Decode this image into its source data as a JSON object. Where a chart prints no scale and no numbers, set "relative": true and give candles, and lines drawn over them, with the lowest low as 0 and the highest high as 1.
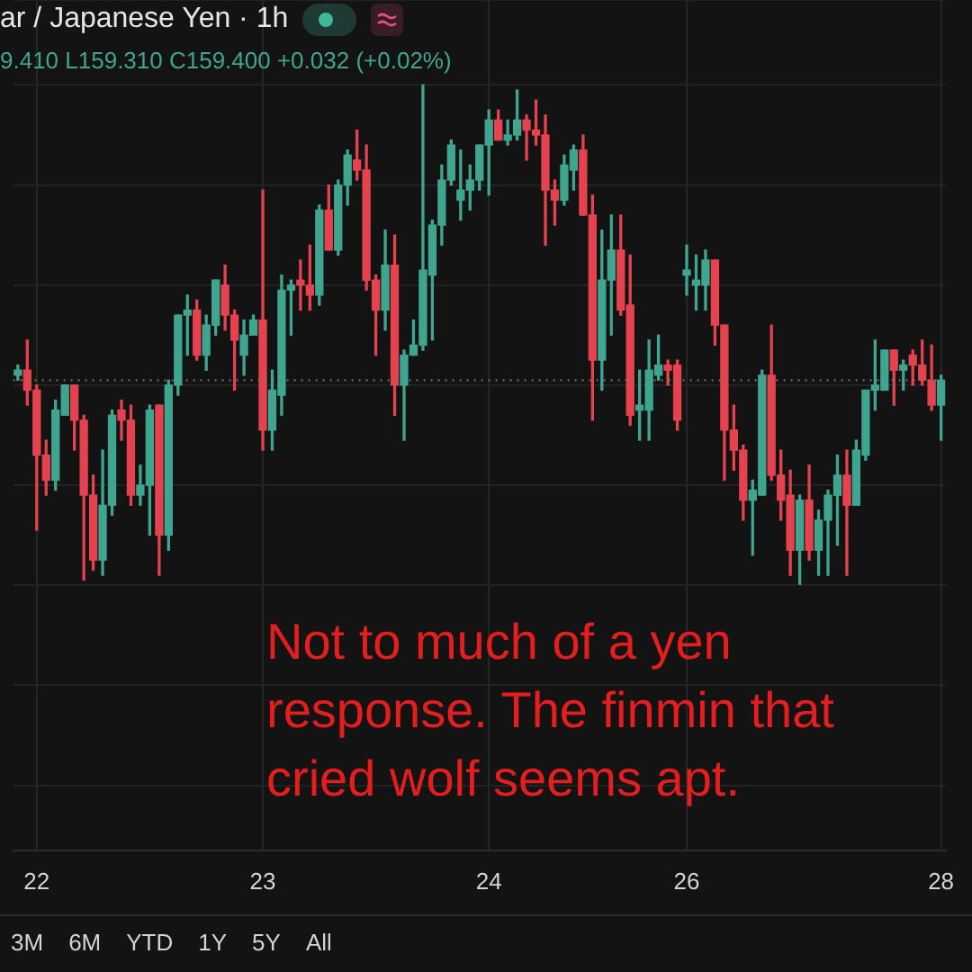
{
  "chart_data": {
    "type": "candlestick",
    "relative": true,
    "grid": true,
    "categories": [
      null,
      null,
      "22",
      null,
      null,
      null,
      null,
      null,
      null,
      null,
      null,
      null,
      null,
      null,
      null,
      null,
      null,
      null,
      null,
      null,
      null,
      null,
      null,
      null,
      null,
      null,
      "23",
      null,
      null,
      null,
      null,
      null,
      null,
      null,
      null,
      null,
      null,
      null,
      null,
      null,
      null,
      null,
      null,
      null,
      null,
      null,
      null,
      null,
      null,
      null,
      "24",
      null,
      null,
      null,
      null,
      null,
      null,
      null,
      null,
      null,
      null,
      null,
      null,
      null,
      null,
      null,
      null,
      null,
      null,
      null,
      null,
      "26",
      null,
      null,
      null,
      null,
      null,
      null,
      null,
      null,
      null,
      null,
      null,
      null,
      null,
      null,
      null,
      null,
      null,
      null,
      null,
      null,
      null,
      null,
      null,
      null,
      null,
      null,
      "28"
    ],
    "ohlc": [
      [
        0.42,
        0.44,
        0.41,
        0.43
      ],
      [
        0.43,
        0.49,
        0.36,
        0.39
      ],
      [
        0.39,
        0.4,
        0.11,
        0.26
      ],
      [
        0.26,
        0.29,
        0.18,
        0.21
      ],
      [
        0.21,
        0.37,
        0.19,
        0.35
      ],
      [
        0.34,
        0.4,
        0.34,
        0.4
      ],
      [
        0.4,
        0.4,
        0.27,
        0.33
      ],
      [
        0.33,
        0.34,
        0.01,
        0.18
      ],
      [
        0.18,
        0.22,
        0.03,
        0.05
      ],
      [
        0.05,
        0.27,
        0.02,
        0.16
      ],
      [
        0.16,
        0.35,
        0.14,
        0.34
      ],
      [
        0.35,
        0.37,
        0.29,
        0.33
      ],
      [
        0.33,
        0.36,
        0.16,
        0.18
      ],
      [
        0.18,
        0.24,
        0.16,
        0.2
      ],
      [
        0.2,
        0.36,
        0.1,
        0.35
      ],
      [
        0.36,
        0.36,
        0.02,
        0.1
      ],
      [
        0.1,
        0.41,
        0.07,
        0.4
      ],
      [
        0.4,
        0.54,
        0.38,
        0.54
      ],
      [
        0.54,
        0.58,
        0.46,
        0.55
      ],
      [
        0.55,
        0.57,
        0.45,
        0.46
      ],
      [
        0.46,
        0.54,
        0.43,
        0.52
      ],
      [
        0.52,
        0.61,
        0.5,
        0.61
      ],
      [
        0.6,
        0.64,
        0.51,
        0.54
      ],
      [
        0.54,
        0.55,
        0.39,
        0.49
      ],
      [
        0.46,
        0.53,
        0.42,
        0.5
      ],
      [
        0.5,
        0.54,
        0.5,
        0.53
      ],
      [
        0.53,
        0.79,
        0.27,
        0.31
      ],
      [
        0.31,
        0.43,
        0.27,
        0.39
      ],
      [
        0.38,
        0.62,
        0.34,
        0.59
      ],
      [
        0.59,
        0.61,
        0.5,
        0.6
      ],
      [
        0.61,
        0.65,
        0.55,
        0.6
      ],
      [
        0.6,
        0.68,
        0.55,
        0.58
      ],
      [
        0.58,
        0.76,
        0.56,
        0.75
      ],
      [
        0.75,
        0.8,
        0.67,
        0.67
      ],
      [
        0.67,
        0.81,
        0.66,
        0.8
      ],
      [
        0.8,
        0.87,
        0.76,
        0.86
      ],
      [
        0.85,
        0.91,
        0.81,
        0.83
      ],
      [
        0.83,
        0.88,
        0.59,
        0.61
      ],
      [
        0.61,
        0.62,
        0.46,
        0.55
      ],
      [
        0.55,
        0.71,
        0.51,
        0.64
      ],
      [
        0.64,
        0.7,
        0.34,
        0.4
      ],
      [
        0.4,
        0.47,
        0.29,
        0.46
      ],
      [
        0.46,
        0.53,
        0.46,
        0.48
      ],
      [
        0.48,
        1.0,
        0.47,
        0.63
      ],
      [
        0.62,
        0.73,
        0.49,
        0.72
      ],
      [
        0.72,
        0.84,
        0.68,
        0.81
      ],
      [
        0.81,
        0.89,
        0.8,
        0.88
      ],
      [
        0.77,
        0.87,
        0.73,
        0.79
      ],
      [
        0.79,
        0.84,
        0.75,
        0.81
      ],
      [
        0.81,
        0.88,
        0.79,
        0.88
      ],
      [
        0.88,
        0.95,
        0.78,
        0.93
      ],
      [
        0.93,
        0.95,
        0.89,
        0.89
      ],
      [
        0.89,
        0.93,
        0.88,
        0.9
      ],
      [
        0.9,
        0.99,
        0.89,
        0.93
      ],
      [
        0.93,
        0.94,
        0.85,
        0.91
      ],
      [
        0.91,
        0.97,
        0.88,
        0.9
      ],
      [
        0.9,
        0.94,
        0.68,
        0.79
      ],
      [
        0.79,
        0.81,
        0.72,
        0.77
      ],
      [
        0.77,
        0.86,
        0.76,
        0.84
      ],
      [
        0.83,
        0.88,
        0.79,
        0.87
      ],
      [
        0.87,
        0.9,
        0.74,
        0.74
      ],
      [
        0.74,
        0.78,
        0.33,
        0.45
      ],
      [
        0.45,
        0.71,
        0.39,
        0.61
      ],
      [
        0.61,
        0.74,
        0.5,
        0.67
      ],
      [
        0.67,
        0.74,
        0.54,
        0.55
      ],
      [
        0.56,
        0.66,
        0.32,
        0.34
      ],
      [
        0.35,
        0.43,
        0.29,
        0.36
      ],
      [
        0.35,
        0.49,
        0.29,
        0.43
      ],
      [
        0.42,
        0.5,
        0.41,
        0.44
      ],
      [
        0.44,
        0.45,
        0.4,
        0.43
      ],
      [
        0.44,
        0.45,
        0.31,
        0.33
      ],
      [
        0.62,
        0.68,
        0.58,
        0.63
      ],
      [
        0.6,
        0.66,
        0.55,
        0.61
      ],
      [
        0.6,
        0.67,
        0.55,
        0.65
      ],
      [
        0.65,
        0.65,
        0.48,
        0.52
      ],
      [
        0.52,
        0.52,
        0.21,
        0.31
      ],
      [
        0.31,
        0.36,
        0.23,
        0.27
      ],
      [
        0.27,
        0.28,
        0.13,
        0.17
      ],
      [
        0.17,
        0.21,
        0.06,
        0.19
      ],
      [
        0.18,
        0.43,
        0.18,
        0.42
      ],
      [
        0.42,
        0.52,
        0.21,
        0.22
      ],
      [
        0.22,
        0.27,
        0.13,
        0.17
      ],
      [
        0.18,
        0.23,
        0.02,
        0.07
      ],
      [
        0.07,
        0.18,
        0.0,
        0.17
      ],
      [
        0.17,
        0.24,
        0.05,
        0.07
      ],
      [
        0.07,
        0.15,
        0.02,
        0.13
      ],
      [
        0.13,
        0.19,
        0.02,
        0.18
      ],
      [
        0.18,
        0.26,
        0.08,
        0.22
      ],
      [
        0.22,
        0.27,
        0.02,
        0.16
      ],
      [
        0.16,
        0.29,
        0.16,
        0.27
      ],
      [
        0.26,
        0.39,
        0.25,
        0.39
      ],
      [
        0.39,
        0.49,
        0.35,
        0.4
      ],
      [
        0.39,
        0.47,
        0.39,
        0.47
      ],
      [
        0.47,
        0.47,
        0.36,
        0.43
      ],
      [
        0.43,
        0.45,
        0.39,
        0.44
      ],
      [
        0.46,
        0.47,
        0.4,
        0.44
      ],
      [
        0.44,
        0.49,
        0.4,
        0.41
      ],
      [
        0.41,
        0.48,
        0.35,
        0.36
      ],
      [
        0.36,
        0.42,
        0.29,
        0.41
      ]
    ],
    "colors": [
      "#3fa58f",
      "#e5424f",
      "#e5424f",
      "#e5424f",
      "#3fa58f",
      "#3fa58f",
      "#e5424f",
      "#e5424f",
      "#e5424f",
      "#3fa58f",
      "#3fa58f",
      "#e5424f",
      "#e5424f",
      "#3fa58f",
      "#3fa58f",
      "#e5424f",
      "#3fa58f",
      "#3fa58f",
      "#3fa58f",
      "#e5424f",
      "#3fa58f",
      "#3fa58f",
      "#e5424f",
      "#e5424f",
      "#3fa58f",
      "#3fa58f",
      "#e5424f",
      "#3fa58f",
      "#3fa58f",
      "#3fa58f",
      "#e5424f",
      "#e5424f",
      "#3fa58f",
      "#e5424f",
      "#3fa58f",
      "#3fa58f",
      "#e5424f",
      "#e5424f",
      "#e5424f",
      "#3fa58f",
      "#e5424f",
      "#3fa58f",
      "#3fa58f",
      "#3fa58f",
      "#3fa58f",
      "#3fa58f",
      "#3fa58f",
      "#3fa58f",
      "#3fa58f",
      "#3fa58f",
      "#3fa58f",
      "#e5424f",
      "#3fa58f",
      "#3fa58f",
      "#e5424f",
      "#e5424f",
      "#e5424f",
      "#e5424f",
      "#3fa58f",
      "#3fa58f",
      "#e5424f",
      "#e5424f",
      "#3fa58f",
      "#3fa58f",
      "#e5424f",
      "#e5424f",
      "#3fa58f",
      "#3fa58f",
      "#3fa58f",
      "#e5424f",
      "#e5424f",
      "#3fa58f",
      "#3fa58f",
      "#3fa58f",
      "#e5424f",
      "#e5424f",
      "#e5424f",
      "#e5424f",
      "#3fa58f",
      "#3fa58f",
      "#e5424f",
      "#e5424f",
      "#e5424f",
      "#3fa58f",
      "#e5424f",
      "#3fa58f",
      "#3fa58f",
      "#3fa58f",
      "#e5424f",
      "#3fa58f",
      "#3fa58f",
      "#3fa58f",
      "#3fa58f",
      "#e5424f",
      "#3fa58f",
      "#e5424f",
      "#e5424f",
      "#e5424f",
      "#3fa58f"
    ],
    "ref_lines": [
      {
        "axis": "y",
        "value": 0.41,
        "color": "#7a7a7a",
        "line_style": "dotted"
      }
    ],
    "annotations": [
      "ar / Japanese Yen · 1h",
      "9.410 L159.310 C159.400 +0.032 (+0.02%)",
      "Not to much of a yen response. The finmin that cried wolf seems apt.",
      "3M",
      "6M",
      "YTD",
      "1Y",
      "5Y",
      "All"
    ]
  }
}
